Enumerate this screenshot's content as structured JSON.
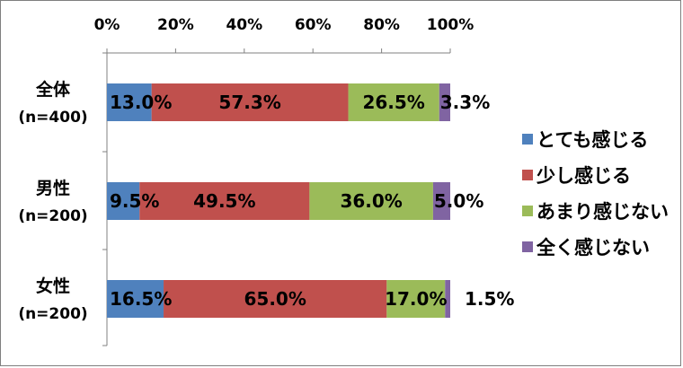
{
  "chart_data": {
    "type": "bar",
    "orientation": "horizontal",
    "stacked": true,
    "percent_stacked": true,
    "categories": [
      {
        "name": "全体",
        "n": "(n=400)"
      },
      {
        "name": "男性",
        "n": "(n=200)"
      },
      {
        "name": "女性",
        "n": "(n=200)"
      }
    ],
    "series": [
      {
        "name": "とても感じる",
        "color": "#4f81bd",
        "values": [
          13.0,
          9.5,
          16.5
        ],
        "labels": [
          "13.0%",
          "9.5%",
          "16.5%"
        ]
      },
      {
        "name": "少し感じる",
        "color": "#c0504d",
        "values": [
          57.3,
          49.5,
          65.0
        ],
        "labels": [
          "57.3%",
          "49.5%",
          "65.0%"
        ]
      },
      {
        "name": "あまり感じない",
        "color": "#9bbb59",
        "values": [
          26.5,
          36.0,
          17.0
        ],
        "labels": [
          "26.5%",
          "36.0%",
          "17.0%"
        ]
      },
      {
        "name": "全く感じない",
        "color": "#8064a2",
        "values": [
          3.3,
          5.0,
          1.5
        ],
        "labels": [
          "3.3%",
          "5.0%",
          "1.5%"
        ]
      }
    ],
    "x_ticks": [
      "0%",
      "20%",
      "40%",
      "60%",
      "80%",
      "100%"
    ],
    "xlim": [
      0,
      100
    ],
    "axis_position": "top",
    "legend_position": "right",
    "grid": false
  }
}
